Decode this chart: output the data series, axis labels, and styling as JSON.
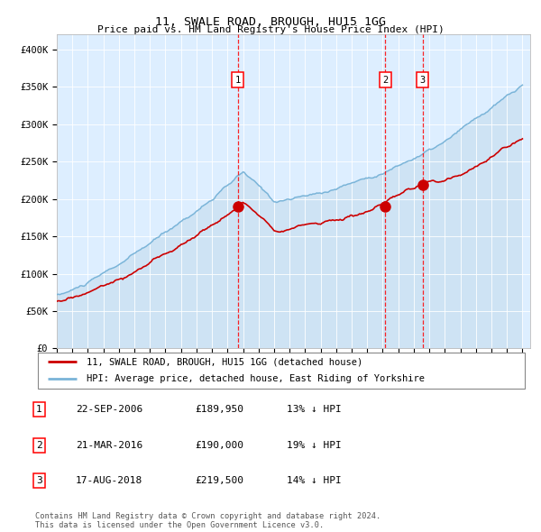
{
  "title": "11, SWALE ROAD, BROUGH, HU15 1GG",
  "subtitle": "Price paid vs. HM Land Registry's House Price Index (HPI)",
  "ylabel_ticks": [
    "£0",
    "£50K",
    "£100K",
    "£150K",
    "£200K",
    "£250K",
    "£300K",
    "£350K",
    "£400K"
  ],
  "ytick_vals": [
    0,
    50000,
    100000,
    150000,
    200000,
    250000,
    300000,
    350000,
    400000
  ],
  "ylim": [
    0,
    420000
  ],
  "hpi_color": "#7ab4d8",
  "hpi_fill_color": "#c8dff0",
  "price_color": "#cc0000",
  "bg_color": "#ddeeff",
  "sale_dates": [
    "2006-09-22",
    "2016-03-21",
    "2018-08-17"
  ],
  "sale_prices": [
    189950,
    190000,
    219500
  ],
  "sale_labels": [
    "1",
    "2",
    "3"
  ],
  "legend_label_price": "11, SWALE ROAD, BROUGH, HU15 1GG (detached house)",
  "legend_label_hpi": "HPI: Average price, detached house, East Riding of Yorkshire",
  "footer": "Contains HM Land Registry data © Crown copyright and database right 2024.\nThis data is licensed under the Open Government Licence v3.0.",
  "table_rows": [
    [
      "1",
      "22-SEP-2006",
      "£189,950",
      "13% ↓ HPI"
    ],
    [
      "2",
      "21-MAR-2016",
      "£190,000",
      "19% ↓ HPI"
    ],
    [
      "3",
      "17-AUG-2018",
      "£219,500",
      "14% ↓ HPI"
    ]
  ]
}
